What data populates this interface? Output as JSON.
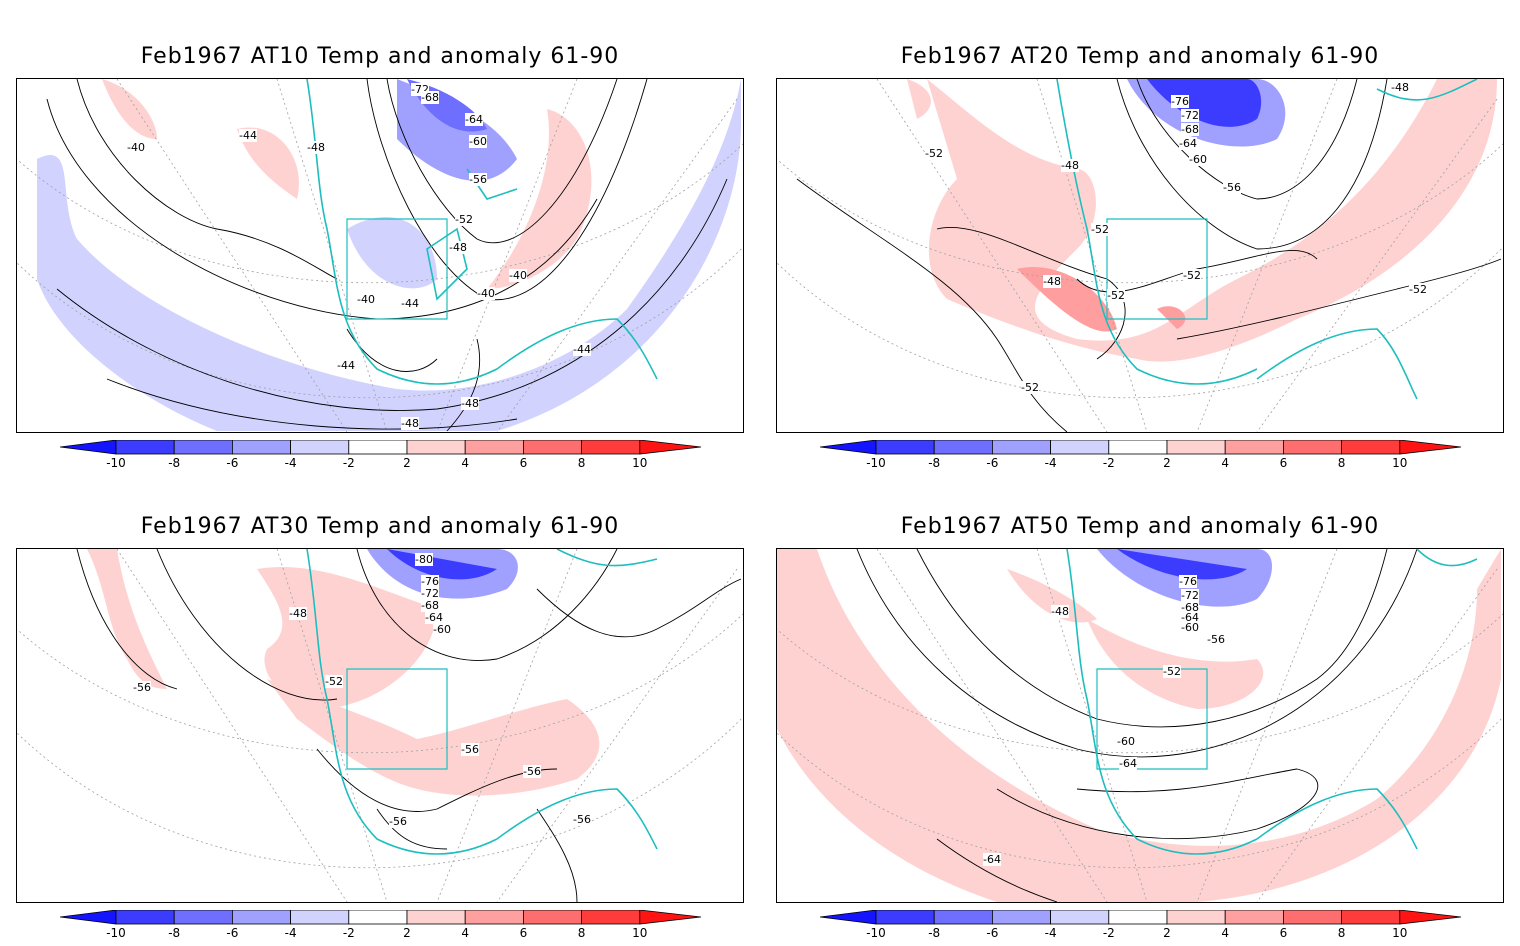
{
  "colorbar": {
    "ticks": [
      "-10",
      "-8",
      "-6",
      "-4",
      "-2",
      "2",
      "4",
      "6",
      "8",
      "10"
    ],
    "colors": [
      "#1414ff",
      "#3c3cff",
      "#6e6eff",
      "#a0a0ff",
      "#d2d2ff",
      "#ffffff",
      "#ffd2d2",
      "#ffa0a0",
      "#ff6e6e",
      "#ff3c3c",
      "#ff1414"
    ]
  },
  "colors": {
    "coastline": "#1ebebe",
    "contour": "#000000",
    "grid": "#a0a0a0"
  },
  "panels": [
    {
      "title": "Feb1967 AT10 Temp and anomaly 61-90",
      "contour_labels": [
        "-72",
        "-68",
        "-64",
        "-60",
        "-56",
        "-52",
        "-48",
        "-44",
        "-40",
        "-48",
        "-44",
        "-40",
        "-40",
        "-44",
        "-44",
        "-48",
        "-48",
        "-40"
      ]
    },
    {
      "title": "Feb1967 AT20 Temp and anomaly 61-90",
      "contour_labels": [
        "-76",
        "-72",
        "-68",
        "-64",
        "-60",
        "-56",
        "-52",
        "-48",
        "-52",
        "-48",
        "-52",
        "-52",
        "-52",
        "-52",
        "-48"
      ]
    },
    {
      "title": "Feb1967 AT30 Temp and anomaly 61-90",
      "contour_labels": [
        "-80",
        "-76",
        "-72",
        "-68",
        "-64",
        "-60",
        "-48",
        "-52",
        "-56",
        "-56",
        "-56",
        "-56",
        "-56"
      ]
    },
    {
      "title": "Feb1967 AT50 Temp and anomaly 61-90",
      "contour_labels": [
        "-76",
        "-72",
        "-68",
        "-64",
        "-60",
        "-56",
        "-48",
        "-52",
        "-60",
        "-64",
        "-64"
      ]
    }
  ]
}
